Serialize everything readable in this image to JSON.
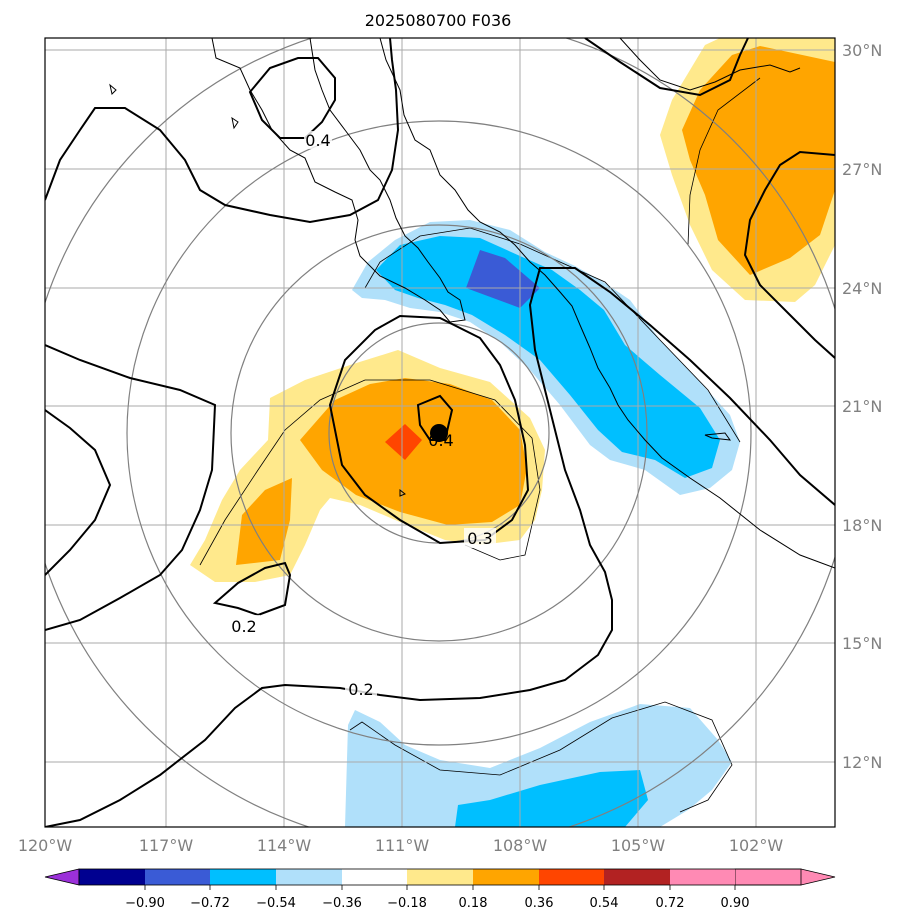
{
  "title": "2025080700 F036",
  "map": {
    "projection": "regional lat-lon map centered near 20.3N 110.1W",
    "lat_labels": [
      "30°N",
      "27°N",
      "24°N",
      "21°N",
      "18°N",
      "15°N",
      "12°N"
    ],
    "lon_labels": [
      "120°W",
      "117°W",
      "114°W",
      "111°W",
      "108°W",
      "105°W",
      "102°W"
    ],
    "center_marker": {
      "lat": 20.3,
      "lon": -110.1
    },
    "contour_labels": [
      {
        "text": "0.4",
        "lat": 27.6,
        "lon": -113.1
      },
      {
        "text": "0.4",
        "lat": 20.2,
        "lon": -109.9
      },
      {
        "text": "0.3",
        "lat": 17.6,
        "lon": -108.0
      },
      {
        "text": "0.2",
        "lat": 15.4,
        "lon": -115.0
      },
      {
        "text": "0.2",
        "lat": 14.0,
        "lon": -111.6
      }
    ]
  },
  "colorbar": {
    "tick_labels": [
      "−0.90",
      "−0.72",
      "−0.54",
      "−0.36",
      "−0.18",
      "0.18",
      "0.36",
      "0.54",
      "0.72",
      "0.90"
    ],
    "colors": [
      "#9b30d9",
      "#000090",
      "#3a5bd6",
      "#00bfff",
      "#b0e0fa",
      "#ffffff",
      "#ffe98c",
      "#ffa500",
      "#ff4500",
      "#b22222",
      "#ff8ab4"
    ]
  },
  "colors": {
    "neg_light": "#b0e0fa",
    "neg_mid": "#00bfff",
    "neg_dark": "#3a5bd6",
    "pos_light": "#ffe98c",
    "pos_mid": "#ffa500",
    "pos_dark": "#ff4500",
    "grid": "#aaaaaa",
    "range_rings": "#808080"
  }
}
